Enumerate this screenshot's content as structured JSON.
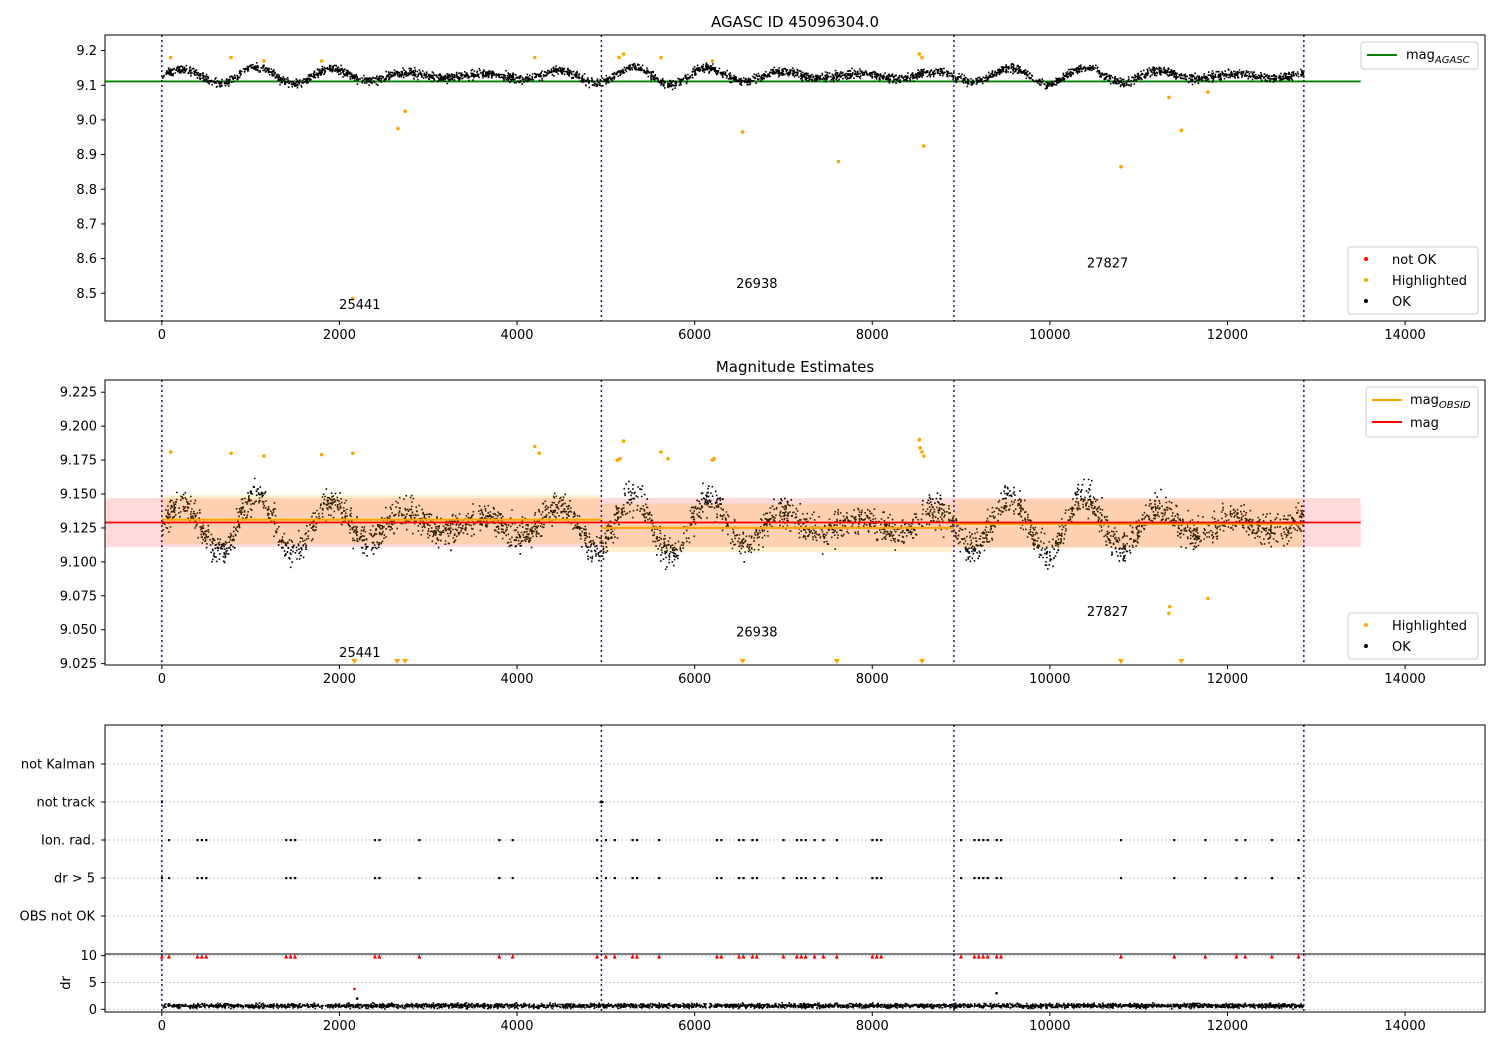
{
  "figure": {
    "suptitle": "AGASC ID 45096304.0"
  },
  "colors": {
    "ok": "#000000",
    "highlighted": "#ffa500",
    "not_ok": "#ff0000",
    "agasc_line": "#008000",
    "obsid_line": "#ffa500",
    "mag_line": "#ff0000",
    "obs_divider": "#4b0082",
    "mag_band": "#ffb6b6"
  },
  "chart_data": [
    {
      "type": "scatter",
      "title": "AGASC ID 45096304.0",
      "xlim": [
        -640,
        14900
      ],
      "ylim": [
        8.42,
        9.245
      ],
      "xticks": [
        0,
        2000,
        4000,
        6000,
        8000,
        10000,
        12000,
        14000
      ],
      "yticks": [
        8.5,
        8.6,
        8.7,
        8.8,
        8.9,
        9.0,
        9.1,
        9.2
      ],
      "grid": false,
      "legend_upper": {
        "position": "top-right",
        "entries": [
          {
            "label": "mag",
            "sub": "AGASC",
            "style": "line",
            "color": "#008000"
          }
        ]
      },
      "legend_lower": {
        "position": "bottom-right",
        "entries": [
          {
            "label": "not OK",
            "color": "#ff0000"
          },
          {
            "label": "Highlighted",
            "color": "#ffa500"
          },
          {
            "label": "OK",
            "color": "#000000"
          }
        ]
      },
      "hlines": [
        {
          "name": "mag_AGASC",
          "y": 9.111,
          "x": [
            -640,
            13500
          ]
        }
      ],
      "obs_boundaries": [
        0,
        4950,
        8920,
        12860
      ],
      "obs_labels": [
        {
          "text": "25441",
          "x": 2230,
          "y": 8.455
        },
        {
          "text": "26938",
          "x": 6700,
          "y": 8.515
        },
        {
          "text": "27827",
          "x": 10650,
          "y": 8.575
        }
      ],
      "series_ok": {
        "x_range": [
          0,
          12850
        ],
        "mean": 9.13,
        "oscillation": 0.025,
        "noise": 0.012
      },
      "highlighted": {
        "x": [
          100,
          780,
          1150,
          1800,
          2150,
          2660,
          2740,
          4200,
          5150,
          5200,
          5620,
          6200,
          6540,
          7620,
          8530,
          8560,
          8580,
          10800,
          11340,
          11480,
          11780
        ],
        "y": [
          9.18,
          9.18,
          9.17,
          9.17,
          8.485,
          8.975,
          9.025,
          9.18,
          9.18,
          9.19,
          9.18,
          9.17,
          8.965,
          8.88,
          9.19,
          9.18,
          8.925,
          8.865,
          9.065,
          8.97,
          9.08
        ]
      }
    },
    {
      "type": "scatter",
      "title": "Magnitude Estimates",
      "xlim": [
        -640,
        14900
      ],
      "ylim": [
        9.024,
        9.234
      ],
      "xticks": [
        0,
        2000,
        4000,
        6000,
        8000,
        10000,
        12000,
        14000
      ],
      "yticks": [
        9.025,
        9.05,
        9.075,
        9.1,
        9.125,
        9.15,
        9.175,
        9.2,
        9.225
      ],
      "grid": false,
      "legend_upper": {
        "position": "top-right",
        "entries": [
          {
            "label": "mag",
            "sub": "OBSID",
            "style": "line",
            "color": "#ffa500"
          },
          {
            "label": "mag",
            "sub": "",
            "style": "line",
            "color": "#ff0000"
          }
        ]
      },
      "legend_lower": {
        "position": "bottom-right",
        "entries": [
          {
            "label": "Highlighted",
            "color": "#ffa500"
          },
          {
            "label": "OK",
            "color": "#000000"
          }
        ]
      },
      "mag_line": {
        "y": 9.129,
        "x": [
          -640,
          13500
        ]
      },
      "mag_band": [
        9.111,
        9.147
      ],
      "obsid_segments": [
        {
          "x": [
            0,
            4950
          ],
          "y": 9.131
        },
        {
          "x": [
            4950,
            8920
          ],
          "y": 9.125
        },
        {
          "x": [
            8920,
            12860
          ],
          "y": 9.128
        }
      ],
      "obs_boundaries": [
        0,
        4950,
        8920,
        12860
      ],
      "obs_labels": [
        {
          "text": "25441",
          "x": 2230,
          "y": 9.03
        },
        {
          "text": "26938",
          "x": 6700,
          "y": 9.045
        },
        {
          "text": "27827",
          "x": 10650,
          "y": 9.06
        }
      ],
      "series_ok": {
        "x_range": [
          0,
          12850
        ],
        "mean": 9.128,
        "oscillation": 0.022,
        "noise": 0.011
      },
      "highlighted": {
        "x": [
          100,
          780,
          1150,
          1800,
          2150,
          4200,
          4250,
          5130,
          5160,
          5200,
          5620,
          5700,
          6200,
          6220,
          8530,
          8540,
          8560,
          8580,
          11340,
          11350,
          11780
        ],
        "y": [
          9.181,
          9.18,
          9.178,
          9.179,
          9.18,
          9.185,
          9.18,
          9.175,
          9.176,
          9.189,
          9.181,
          9.176,
          9.175,
          9.176,
          9.19,
          9.184,
          9.181,
          9.178,
          9.062,
          9.067,
          9.073
        ]
      },
      "offscale_markers_x": [
        2170,
        2650,
        2740,
        6540,
        7600,
        8560,
        10800,
        11480
      ]
    },
    {
      "type": "scatter",
      "title": "",
      "xlim": [
        -640,
        14900
      ],
      "categories": [
        "not Kalman",
        "not track",
        "Ion. rad.",
        "dr > 5",
        "OBS not OK"
      ],
      "grid": true,
      "obs_boundaries": [
        0,
        4950,
        8920,
        12860
      ],
      "flags": {
        "not track": [
          0,
          4940,
          4960
        ],
        "Ion. rad.": [
          80,
          400,
          450,
          500,
          1400,
          1450,
          1500,
          2400,
          2450,
          2900,
          3800,
          3950,
          4900,
          5000,
          5100,
          5300,
          5350,
          5600,
          6250,
          6300,
          6500,
          6550,
          6650,
          6700,
          7000,
          7150,
          7200,
          7250,
          7350,
          7450,
          7600,
          8000,
          8050,
          8100,
          9000,
          9150,
          9200,
          9250,
          9300,
          9400,
          9450,
          10800,
          11400,
          11750,
          12100,
          12200,
          12500,
          12800
        ],
        "dr > 5": [
          0,
          80,
          400,
          450,
          500,
          1400,
          1450,
          1500,
          2400,
          2450,
          2900,
          3800,
          3950,
          4900,
          5000,
          5100,
          5300,
          5350,
          5600,
          6250,
          6300,
          6500,
          6550,
          6650,
          6700,
          7000,
          7150,
          7200,
          7250,
          7350,
          7450,
          7600,
          8000,
          8050,
          8100,
          9000,
          9150,
          9200,
          9250,
          9300,
          9400,
          9450,
          10800,
          11400,
          11750,
          12100,
          12200,
          12500,
          12800
        ]
      }
    },
    {
      "type": "scatter",
      "title": "",
      "ylabel": "dr",
      "xlim": [
        -640,
        14900
      ],
      "ylim": [
        -0.5,
        10.3
      ],
      "xticks": [
        0,
        2000,
        4000,
        6000,
        8000,
        10000,
        12000,
        14000
      ],
      "yticks": [
        0,
        5,
        10
      ],
      "grid": true,
      "obs_boundaries": [
        0,
        4950,
        8920,
        12860
      ],
      "series_ok": {
        "x_range": [
          0,
          12850
        ],
        "mean": 0.8,
        "noise": 0.4
      },
      "outliers": [
        {
          "x": 2170,
          "y": 3.8
        },
        {
          "x": 2200,
          "y": 2.0
        },
        {
          "x": 9400,
          "y": 3.0
        }
      ],
      "capped_red_x": [
        0,
        80,
        400,
        450,
        500,
        1400,
        1450,
        1500,
        2400,
        2450,
        2900,
        3800,
        3950,
        4900,
        5000,
        5100,
        5300,
        5350,
        5600,
        6250,
        6300,
        6500,
        6550,
        6650,
        6700,
        7000,
        7150,
        7200,
        7250,
        7350,
        7450,
        7600,
        8000,
        8050,
        8100,
        9000,
        9150,
        9200,
        9250,
        9300,
        9400,
        9450,
        10800,
        11400,
        11750,
        12100,
        12200,
        12500,
        12800
      ],
      "capped_y": 9.8
    }
  ]
}
